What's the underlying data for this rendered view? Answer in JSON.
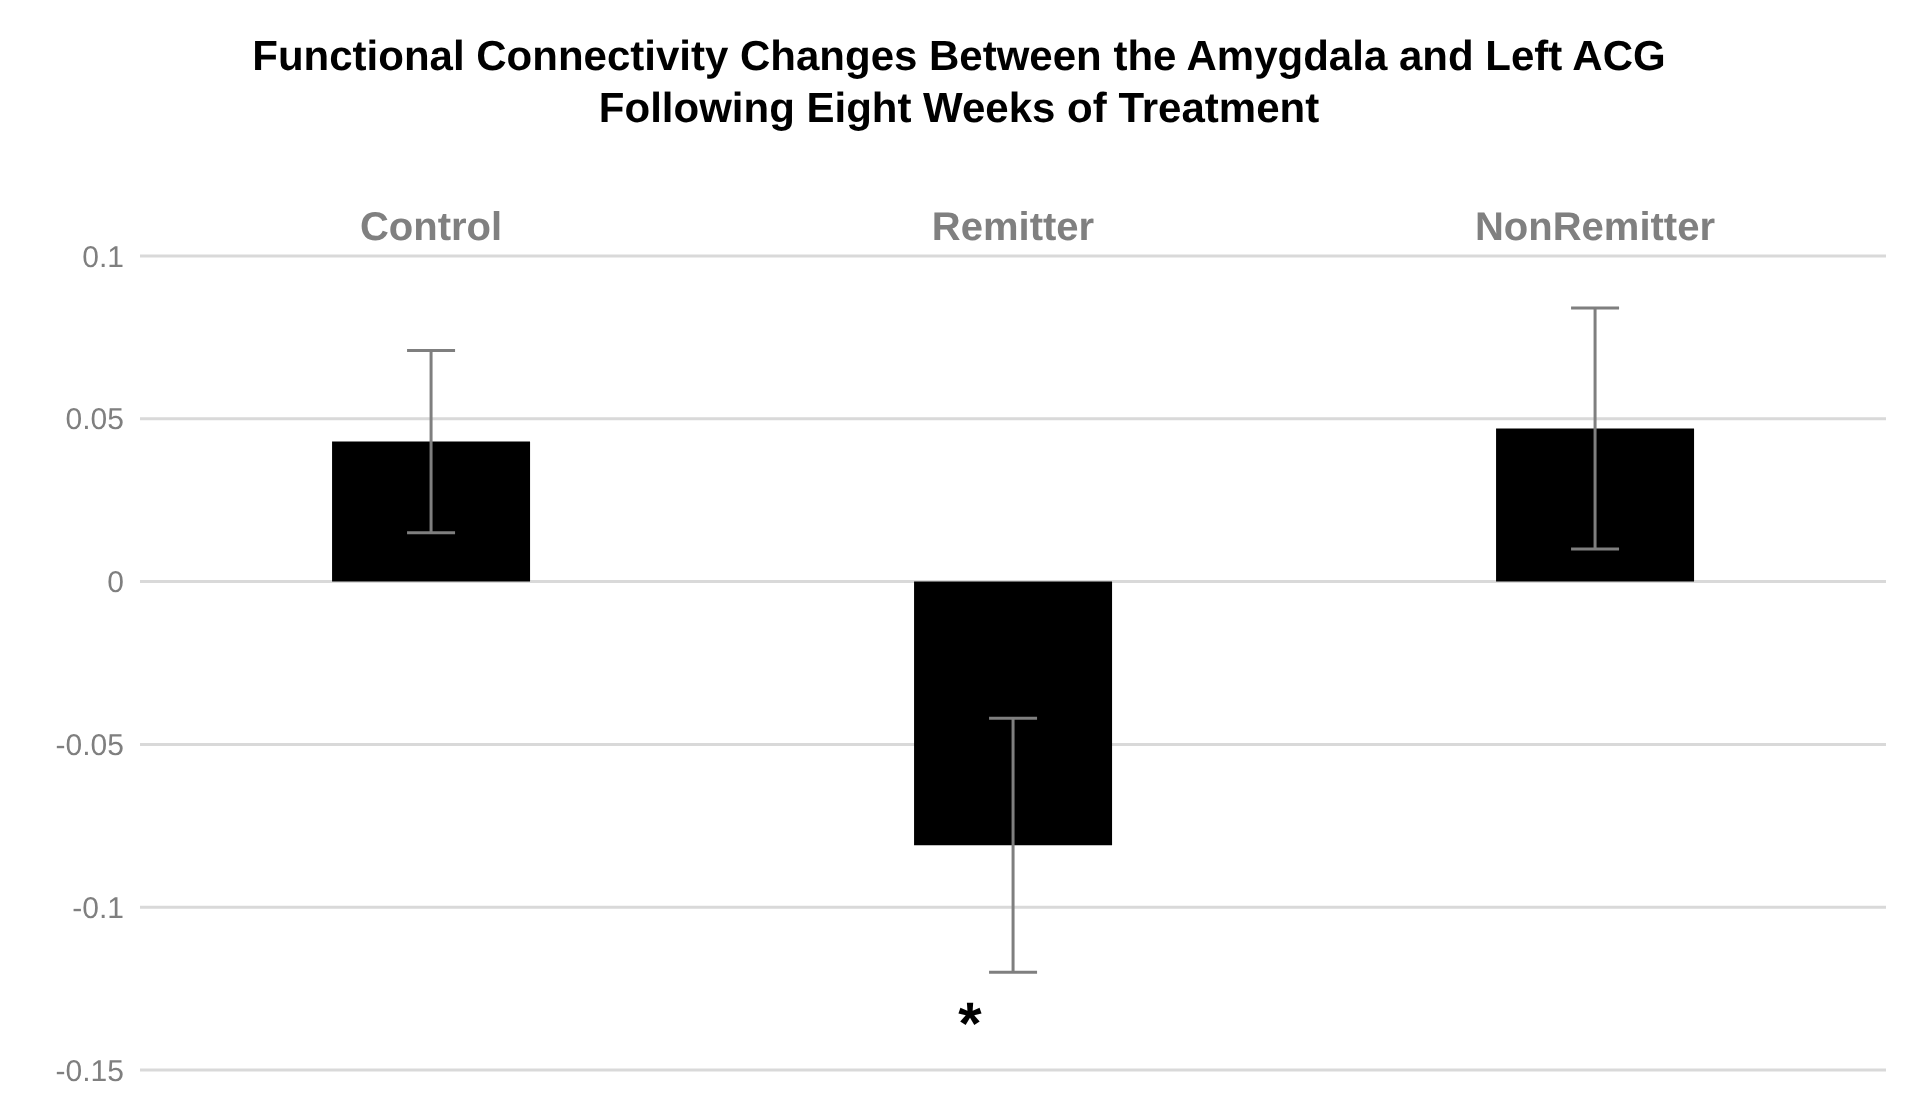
{
  "chart_data": {
    "type": "bar",
    "title": "Functional Connectivity Changes Between the Amygdala and Left ACG\nFollowing Eight Weeks of Treatment",
    "categories": [
      "Control",
      "Remitter",
      "NonRemitter"
    ],
    "values": [
      0.043,
      -0.081,
      0.047
    ],
    "errors": [
      [
        0.015,
        0.071
      ],
      [
        -0.12,
        -0.042
      ],
      [
        0.01,
        0.084
      ]
    ],
    "color": "#000000",
    "ylim": [
      -0.15,
      0.1
    ],
    "yticks": [
      -0.15,
      -0.1,
      -0.05,
      0,
      0.05,
      0.1
    ],
    "grid": "y",
    "annotations": [
      "*"
    ]
  }
}
